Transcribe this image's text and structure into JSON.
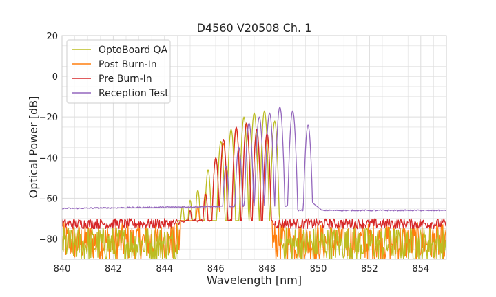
{
  "chart_data": {
    "type": "line",
    "title": "D4560 V20508 Ch. 1",
    "xlabel": "Wavelength [nm]",
    "ylabel": "Optical Power [dB]",
    "xlim": [
      840,
      855
    ],
    "ylim": [
      -90,
      20
    ],
    "xticks": [
      840,
      842,
      844,
      846,
      848,
      850,
      852,
      854
    ],
    "yticks": [
      20,
      0,
      -20,
      -40,
      -60,
      -80
    ],
    "xtick_labels": [
      "840",
      "842",
      "844",
      "846",
      "848",
      "850",
      "852",
      "854"
    ],
    "ytick_labels": [
      "20",
      "0",
      "−20",
      "−40",
      "−60",
      "−80"
    ],
    "grid": true,
    "legend_position": "top-left",
    "series": [
      {
        "name": "OptoBoard QA",
        "color": "#bcbd22",
        "noise_floor": [
          -91,
          -74
        ],
        "peaks": [
          [
            844.7,
            -64
          ],
          [
            845.0,
            -61
          ],
          [
            845.3,
            -56
          ],
          [
            845.7,
            -46
          ],
          [
            846.2,
            -32
          ],
          [
            846.6,
            -26
          ],
          [
            847.1,
            -20
          ],
          [
            847.5,
            -18
          ],
          [
            847.9,
            -17
          ],
          [
            848.3,
            -22
          ]
        ],
        "band": [
          844.5,
          848.5
        ]
      },
      {
        "name": "Post Burn-In",
        "color": "#ff7f0e",
        "noise_floor": [
          -91,
          -72
        ],
        "peaks": [
          [
            845.3,
            -64
          ],
          [
            845.6,
            -57
          ],
          [
            846.0,
            -40
          ],
          [
            846.3,
            -33
          ],
          [
            846.8,
            -26
          ],
          [
            847.2,
            -24
          ],
          [
            847.6,
            -27
          ],
          [
            848.0,
            -30
          ]
        ],
        "band": [
          844.6,
          848.2
        ]
      },
      {
        "name": "Pre Burn-In",
        "color": "#d62728",
        "noise_floor": [
          -75,
          -70
        ],
        "peaks": [
          [
            845.0,
            -66
          ],
          [
            845.6,
            -58
          ],
          [
            846.0,
            -40
          ],
          [
            846.3,
            -31
          ],
          [
            846.8,
            -25
          ],
          [
            847.2,
            -23
          ],
          [
            847.6,
            -26
          ],
          [
            848.0,
            -28
          ]
        ],
        "band": [
          844.6,
          848.2
        ]
      },
      {
        "name": "Reception Test",
        "color": "#9467bd",
        "baseline_left": -65,
        "baseline_right": -66,
        "peaks": [
          [
            846.4,
            -44
          ],
          [
            846.9,
            -35
          ],
          [
            847.3,
            -23
          ],
          [
            847.7,
            -20
          ],
          [
            848.1,
            -18
          ],
          [
            848.5,
            -15
          ],
          [
            849.0,
            -17
          ],
          [
            849.6,
            -24
          ]
        ],
        "band": [
          845.8,
          849.8
        ]
      }
    ]
  }
}
